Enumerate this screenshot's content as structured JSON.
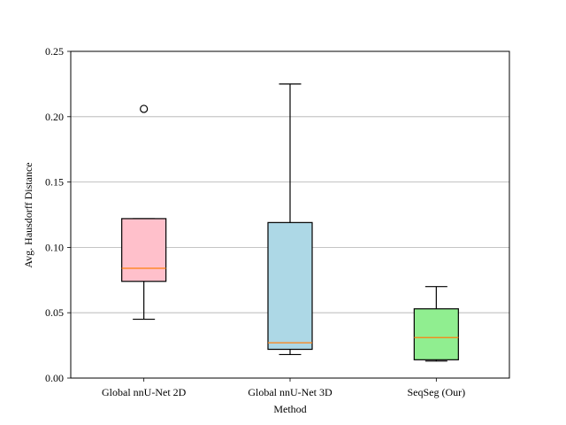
{
  "chart_data": {
    "type": "box",
    "title": "",
    "xlabel": "Method",
    "ylabel": "Avg. Hausdorff Distance",
    "ylim": [
      0,
      0.25
    ],
    "yticks": [
      "0.00",
      "0.05",
      "0.10",
      "0.15",
      "0.20",
      "0.25"
    ],
    "ytick_values": [
      0,
      0.05,
      0.1,
      0.15,
      0.2,
      0.25
    ],
    "grid": "horizontal",
    "categories": [
      "Global nnU-Net 2D",
      "Global nnU-Net 3D",
      "SeqSeg (Our)"
    ],
    "boxes": [
      {
        "name": "Global nnU-Net 2D",
        "whisker_low": 0.045,
        "q1": 0.074,
        "median": 0.084,
        "q3": 0.122,
        "whisker_high": 0.122,
        "outliers": [
          0.206
        ],
        "color": "#ffc0cb"
      },
      {
        "name": "Global nnU-Net 3D",
        "whisker_low": 0.018,
        "q1": 0.022,
        "median": 0.027,
        "q3": 0.119,
        "whisker_high": 0.225,
        "outliers": [],
        "color": "#add8e6"
      },
      {
        "name": "SeqSeg (Our)",
        "whisker_low": 0.013,
        "q1": 0.014,
        "median": 0.031,
        "q3": 0.053,
        "whisker_high": 0.07,
        "outliers": [],
        "color": "#90ee90"
      }
    ],
    "median_color": "#ff7f0e"
  }
}
